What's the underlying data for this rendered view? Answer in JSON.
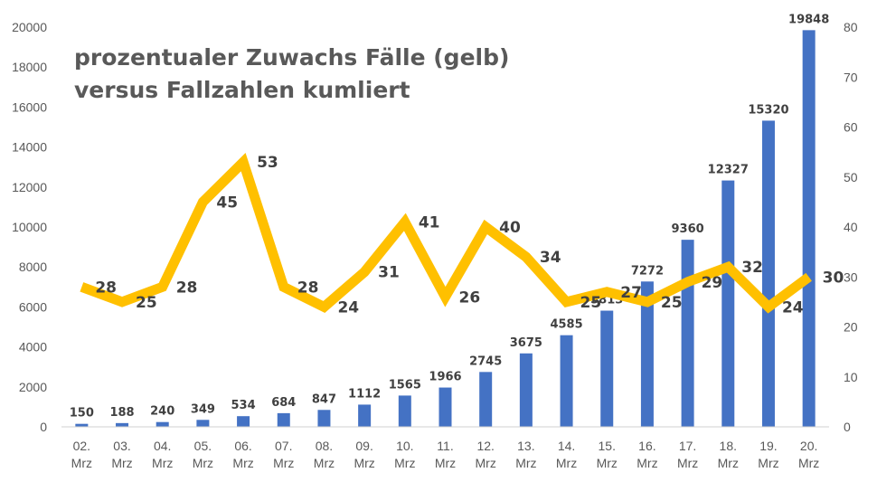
{
  "chart_data": {
    "type": "bar",
    "title_line1": "prozentualer Zuwachs Fälle (gelb)",
    "title_line2": "versus Fallzahlen kumliert",
    "categories": [
      [
        "02.",
        "Mrz"
      ],
      [
        "03.",
        "Mrz"
      ],
      [
        "04.",
        "Mrz"
      ],
      [
        "05.",
        "Mrz"
      ],
      [
        "06.",
        "Mrz"
      ],
      [
        "07.",
        "Mrz"
      ],
      [
        "08.",
        "Mrz"
      ],
      [
        "09.",
        "Mrz"
      ],
      [
        "10.",
        "Mrz"
      ],
      [
        "11.",
        "Mrz"
      ],
      [
        "12.",
        "Mrz"
      ],
      [
        "13.",
        "Mrz"
      ],
      [
        "14.",
        "Mrz"
      ],
      [
        "15.",
        "Mrz"
      ],
      [
        "16.",
        "Mrz"
      ],
      [
        "17.",
        "Mrz"
      ],
      [
        "18.",
        "Mrz"
      ],
      [
        "19.",
        "Mrz"
      ],
      [
        "20.",
        "Mrz"
      ]
    ],
    "series": [
      {
        "type": "bar",
        "axis": "left",
        "color": "#4472C4",
        "values": [
          150,
          188,
          240,
          349,
          534,
          684,
          847,
          1112,
          1565,
          1966,
          2745,
          3675,
          4585,
          5813,
          7272,
          9360,
          12327,
          15320,
          19848
        ]
      },
      {
        "type": "line",
        "axis": "right",
        "color": "#FFC000",
        "values": [
          28,
          25,
          28,
          45,
          53,
          28,
          24,
          31,
          41,
          26,
          40,
          34,
          25,
          27,
          25,
          29,
          32,
          24,
          30
        ]
      }
    ],
    "y_left": {
      "min": 0,
      "max": 20000,
      "ticks": [
        0,
        2000,
        4000,
        6000,
        8000,
        10000,
        12000,
        14000,
        16000,
        18000,
        20000
      ]
    },
    "y_right": {
      "min": 0,
      "max": 80,
      "ticks": [
        0,
        10,
        20,
        30,
        40,
        50,
        60,
        70,
        80
      ]
    },
    "grid": false,
    "legend": "none"
  }
}
